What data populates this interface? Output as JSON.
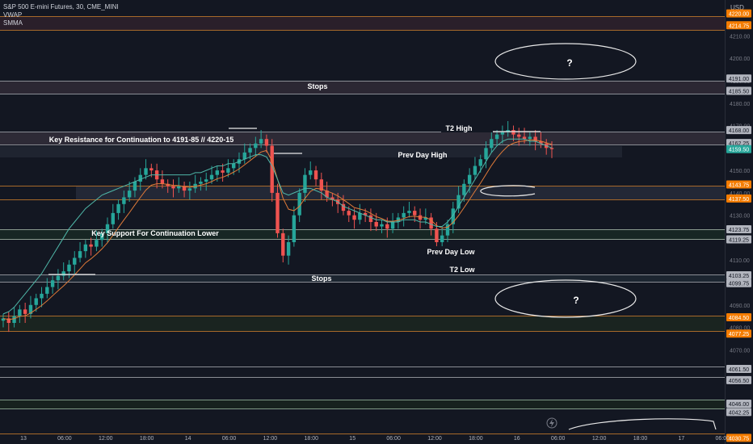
{
  "legend": {
    "symbol": "S&P 500 E-mini Futures, 30, CME_MINI",
    "indicator1": "VWAP",
    "indicator2": "SMMA"
  },
  "axis": {
    "currency": "USD"
  },
  "chart_data": {
    "type": "candlestick",
    "ylim": [
      4028,
      4226
    ],
    "y_ticks": [
      4070,
      4080,
      4090,
      4100,
      4110,
      4120,
      4130,
      4140,
      4150,
      4170,
      4180,
      4190,
      4200,
      4210
    ],
    "x_ticks": [
      "13",
      "06:00",
      "12:00",
      "18:00",
      "14",
      "06:00",
      "12:00",
      "18:00",
      "15",
      "06:00",
      "12:00",
      "18:00",
      "16",
      "06:00",
      "12:00",
      "18:00",
      "17",
      "06:00"
    ],
    "price_labels": [
      {
        "text": "4220.00",
        "color": "#f57c00"
      },
      {
        "text": "4214.75",
        "color": "#f57c00"
      },
      {
        "text": "4191.00",
        "color": "#b2b5be"
      },
      {
        "text": "4185.50",
        "color": "#b2b5be"
      },
      {
        "text": "4168.00",
        "color": "#b2b5be"
      },
      {
        "text": "4162.25",
        "color": "#b2b5be"
      },
      {
        "text": "4159.50",
        "color": "#26a69a"
      },
      {
        "text": "4143.75",
        "color": "#f57c00"
      },
      {
        "text": "4137.50",
        "color": "#f57c00"
      },
      {
        "text": "4123.75",
        "color": "#b2b5be"
      },
      {
        "text": "4119.25",
        "color": "#b2b5be"
      },
      {
        "text": "4103.25",
        "color": "#b2b5be"
      },
      {
        "text": "4099.75",
        "color": "#b2b5be"
      },
      {
        "text": "4084.50",
        "color": "#f57c00"
      },
      {
        "text": "4077.25",
        "color": "#f57c00"
      },
      {
        "text": "4061.50",
        "color": "#b2b5be"
      },
      {
        "text": "4056.50",
        "color": "#b2b5be"
      },
      {
        "text": "4046.00",
        "color": "#b2b5be"
      },
      {
        "text": "4042.25",
        "color": "#b2b5be"
      },
      {
        "text": "4030.75",
        "color": "#f57c00"
      }
    ],
    "annotations": [
      "Stops",
      "Key Resistance for Continuation to 4191-85 // 4220-15",
      "T2 High",
      "Prev Day High",
      "Key Support For Continuation Lower",
      "Prev Day Low",
      "T2 Low",
      "Stops",
      "?",
      "?"
    ],
    "candles_close": [
      4084,
      4082,
      4085,
      4088,
      4086,
      4090,
      4093,
      4095,
      4098,
      4101,
      4103,
      4105,
      4108,
      4111,
      4114,
      4117,
      4116,
      4119,
      4122,
      4126,
      4131,
      4135,
      4138,
      4141,
      4145,
      4148,
      4151,
      4150,
      4146,
      4144,
      4143,
      4142,
      4143,
      4141,
      4142,
      4144,
      4145,
      4146,
      4148,
      4150,
      4149,
      4151,
      4153,
      4155,
      4158,
      4160,
      4162,
      4164,
      4161,
      4140,
      4122,
      4112,
      4118,
      4130,
      4140,
      4148,
      4150,
      4146,
      4141,
      4138,
      4137,
      4135,
      4132,
      4130,
      4128,
      4131,
      4130,
      4127,
      4125,
      4126,
      4124,
      4127,
      4129,
      4131,
      4132,
      4130,
      4128,
      4129,
      4124,
      4118,
      4121,
      4126,
      4133,
      4139,
      4144,
      4148,
      4152,
      4155,
      4160,
      4164,
      4166,
      4167,
      4168,
      4166,
      4165,
      4164,
      4165,
      4163,
      4162,
      4160,
      4159.5
    ],
    "vwap": [
      4086,
      4087,
      4089,
      4092,
      4095,
      4098,
      4101,
      4104,
      4108,
      4112,
      4116,
      4120,
      4124,
      4127,
      4130,
      4133,
      4135,
      4137,
      4139,
      4140,
      4141,
      4142,
      4143,
      4144,
      4145,
      4146,
      4147,
      4148,
      4148,
      4148,
      4148,
      4148,
      4148,
      4148,
      4148,
      4149,
      4149,
      4150,
      4151,
      4152,
      4152,
      4153,
      4153,
      4154,
      4155,
      4156,
      4157,
      4157,
      4156,
      4152,
      4146,
      4140,
      4139,
      4140,
      4141,
      4142,
      4142,
      4141,
      4140,
      4138,
      4137,
      4136,
      4134,
      4133,
      4132,
      4131,
      4130,
      4129,
      4128,
      4128,
      4127,
      4127,
      4127,
      4128,
      4128,
      4128,
      4127,
      4127,
      4126,
      4125,
      4125,
      4127,
      4130,
      4134,
      4138,
      4142,
      4146,
      4150,
      4154,
      4158,
      4161,
      4163,
      4164,
      4164,
      4164,
      4164,
      4163,
      4163,
      4162,
      4161,
      4160
    ]
  }
}
